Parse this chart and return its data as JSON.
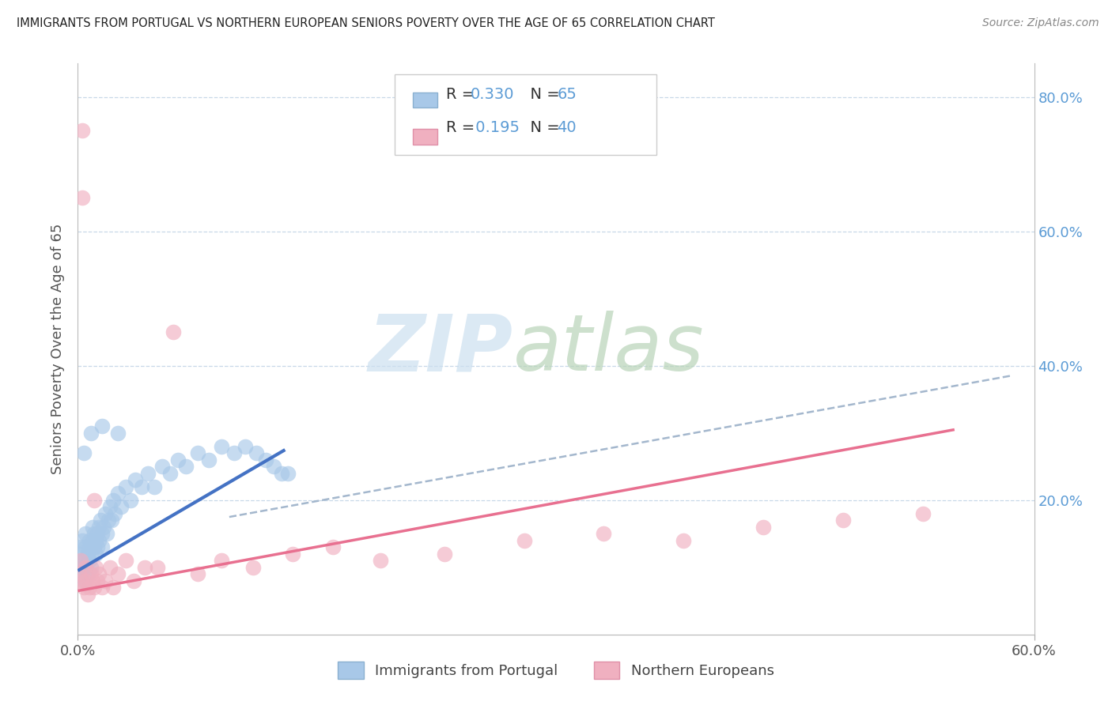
{
  "title": "IMMIGRANTS FROM PORTUGAL VS NORTHERN EUROPEAN SENIORS POVERTY OVER THE AGE OF 65 CORRELATION CHART",
  "source": "Source: ZipAtlas.com",
  "ylabel": "Seniors Poverty Over the Age of 65",
  "xlim": [
    0.0,
    0.6
  ],
  "ylim": [
    0.0,
    0.85
  ],
  "ytick_vals": [
    0.0,
    0.2,
    0.4,
    0.6,
    0.8
  ],
  "ytick_labels_right": [
    "",
    "20.0%",
    "40.0%",
    "60.0%",
    "80.0%"
  ],
  "xtick_vals": [
    0.0,
    0.6
  ],
  "xtick_labels": [
    "0.0%",
    "60.0%"
  ],
  "portugal_color": "#a8c8e8",
  "northern_color": "#f0b0c0",
  "portugal_line_color": "#4472C4",
  "northern_line_color": "#E87090",
  "dashed_line_color": "#9ab0c8",
  "right_axis_color": "#5B9BD5",
  "legend_label_portugal": "Immigrants from Portugal",
  "legend_label_northern": "Northern Europeans",
  "portugal_R": "0.330",
  "portugal_N": "65",
  "northern_R": "0.195",
  "northern_N": "40",
  "grid_color": "#c8d8e8",
  "portugal_x": [
    0.001,
    0.001,
    0.002,
    0.002,
    0.003,
    0.003,
    0.004,
    0.004,
    0.005,
    0.005,
    0.005,
    0.006,
    0.006,
    0.007,
    0.007,
    0.007,
    0.008,
    0.008,
    0.009,
    0.009,
    0.01,
    0.01,
    0.011,
    0.011,
    0.012,
    0.012,
    0.013,
    0.013,
    0.014,
    0.015,
    0.015,
    0.016,
    0.017,
    0.018,
    0.019,
    0.02,
    0.021,
    0.022,
    0.023,
    0.025,
    0.027,
    0.03,
    0.033,
    0.036,
    0.04,
    0.044,
    0.048,
    0.053,
    0.058,
    0.063,
    0.068,
    0.075,
    0.082,
    0.09,
    0.098,
    0.105,
    0.112,
    0.118,
    0.123,
    0.128,
    0.132,
    0.004,
    0.008,
    0.015,
    0.025
  ],
  "portugal_y": [
    0.12,
    0.1,
    0.13,
    0.09,
    0.14,
    0.11,
    0.11,
    0.08,
    0.13,
    0.1,
    0.15,
    0.12,
    0.09,
    0.14,
    0.11,
    0.13,
    0.12,
    0.1,
    0.14,
    0.16,
    0.13,
    0.15,
    0.14,
    0.12,
    0.15,
    0.13,
    0.16,
    0.14,
    0.17,
    0.15,
    0.13,
    0.16,
    0.18,
    0.15,
    0.17,
    0.19,
    0.17,
    0.2,
    0.18,
    0.21,
    0.19,
    0.22,
    0.2,
    0.23,
    0.22,
    0.24,
    0.22,
    0.25,
    0.24,
    0.26,
    0.25,
    0.27,
    0.26,
    0.28,
    0.27,
    0.28,
    0.27,
    0.26,
    0.25,
    0.24,
    0.24,
    0.27,
    0.3,
    0.31,
    0.3
  ],
  "northern_x": [
    0.001,
    0.002,
    0.002,
    0.003,
    0.004,
    0.005,
    0.005,
    0.006,
    0.007,
    0.008,
    0.009,
    0.01,
    0.011,
    0.012,
    0.013,
    0.015,
    0.017,
    0.02,
    0.022,
    0.025,
    0.03,
    0.035,
    0.042,
    0.05,
    0.06,
    0.075,
    0.09,
    0.11,
    0.135,
    0.16,
    0.19,
    0.23,
    0.28,
    0.33,
    0.38,
    0.43,
    0.48,
    0.53,
    0.003,
    0.01
  ],
  "northern_y": [
    0.09,
    0.11,
    0.08,
    0.75,
    0.07,
    0.1,
    0.08,
    0.06,
    0.07,
    0.09,
    0.08,
    0.07,
    0.1,
    0.08,
    0.09,
    0.07,
    0.08,
    0.1,
    0.07,
    0.09,
    0.11,
    0.08,
    0.1,
    0.1,
    0.45,
    0.09,
    0.11,
    0.1,
    0.12,
    0.13,
    0.11,
    0.12,
    0.14,
    0.15,
    0.14,
    0.16,
    0.17,
    0.18,
    0.65,
    0.2
  ],
  "portugal_line_x": [
    0.0,
    0.13
  ],
  "portugal_line_y": [
    0.095,
    0.275
  ],
  "northern_line_x": [
    0.0,
    0.55
  ],
  "northern_line_y": [
    0.065,
    0.305
  ],
  "dash_line_x": [
    0.095,
    0.585
  ],
  "dash_line_y": [
    0.175,
    0.385
  ]
}
